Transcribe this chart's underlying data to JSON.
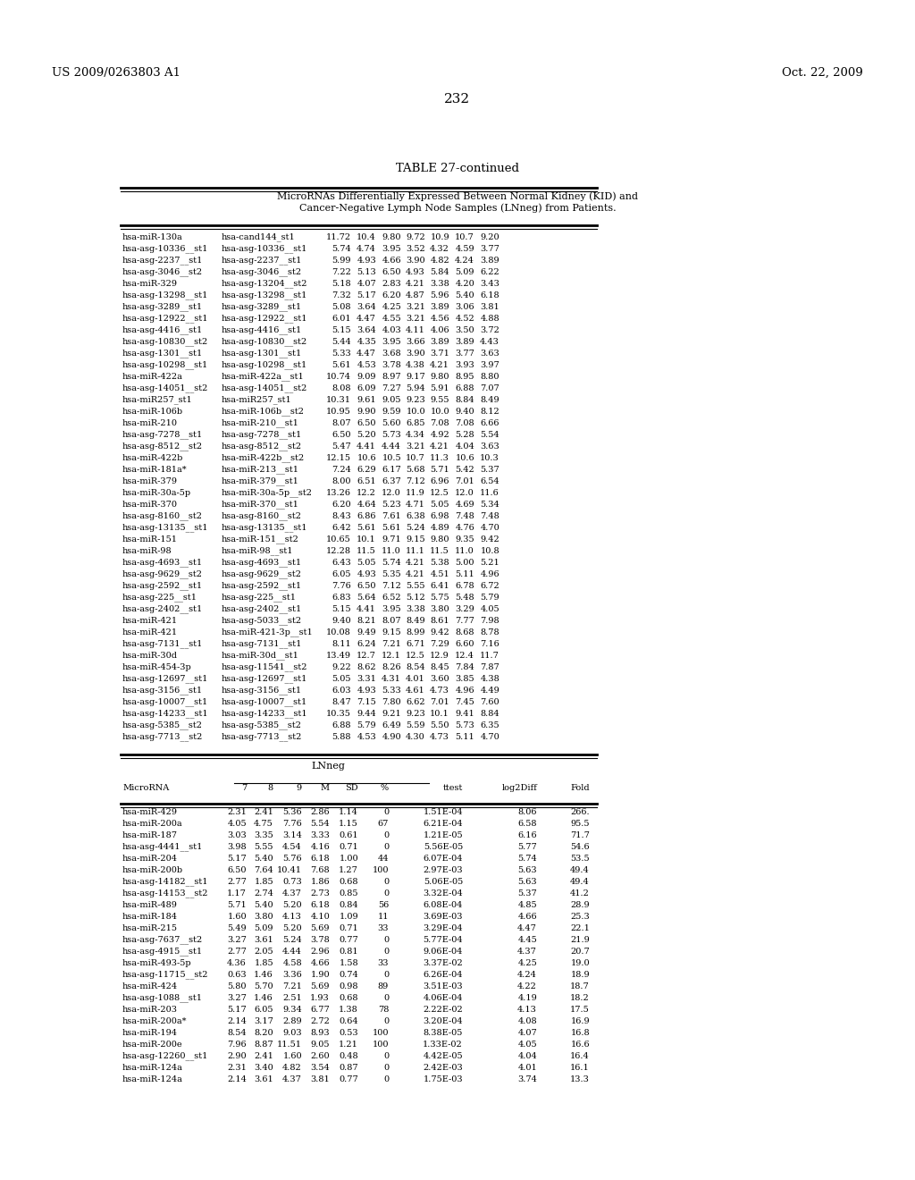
{
  "patent_left": "US 2009/0263803 A1",
  "patent_right": "Oct. 22, 2009",
  "page_number": "232",
  "table_title": "TABLE 27-continued",
  "subtitle1": "MicroRNAs Differentially Expressed Between Normal Kidney (KID) and",
  "subtitle2": "Cancer-Negative Lymph Node Samples (LNneg) from Patients.",
  "top_table_rows": [
    [
      "hsa-miR-130a",
      "hsa-cand144_st1",
      "11.72",
      "10.4",
      "9.80",
      "9.72",
      "10.9",
      "10.7",
      "9.20"
    ],
    [
      "hsa-asg-10336__st1",
      "hsa-asg-10336__st1",
      "5.74",
      "4.74",
      "3.95",
      "3.52",
      "4.32",
      "4.59",
      "3.77"
    ],
    [
      "hsa-asg-2237__st1",
      "hsa-asg-2237__st1",
      "5.99",
      "4.93",
      "4.66",
      "3.90",
      "4.82",
      "4.24",
      "3.89"
    ],
    [
      "hsa-asg-3046__st2",
      "hsa-asg-3046__st2",
      "7.22",
      "5.13",
      "6.50",
      "4.93",
      "5.84",
      "5.09",
      "6.22"
    ],
    [
      "hsa-miR-329",
      "hsa-asg-13204__st2",
      "5.18",
      "4.07",
      "2.83",
      "4.21",
      "3.38",
      "4.20",
      "3.43"
    ],
    [
      "hsa-asg-13298__st1",
      "hsa-asg-13298__st1",
      "7.32",
      "5.17",
      "6.20",
      "4.87",
      "5.96",
      "5.40",
      "6.18"
    ],
    [
      "hsa-asg-3289__st1",
      "hsa-asg-3289__st1",
      "5.08",
      "3.64",
      "4.25",
      "3.21",
      "3.89",
      "3.06",
      "3.81"
    ],
    [
      "hsa-asg-12922__st1",
      "hsa-asg-12922__st1",
      "6.01",
      "4.47",
      "4.55",
      "3.21",
      "4.56",
      "4.52",
      "4.88"
    ],
    [
      "hsa-asg-4416__st1",
      "hsa-asg-4416__st1",
      "5.15",
      "3.64",
      "4.03",
      "4.11",
      "4.06",
      "3.50",
      "3.72"
    ],
    [
      "hsa-asg-10830__st2",
      "hsa-asg-10830__st2",
      "5.44",
      "4.35",
      "3.95",
      "3.66",
      "3.89",
      "3.89",
      "4.43"
    ],
    [
      "hsa-asg-1301__st1",
      "hsa-asg-1301__st1",
      "5.33",
      "4.47",
      "3.68",
      "3.90",
      "3.71",
      "3.77",
      "3.63"
    ],
    [
      "hsa-asg-10298__st1",
      "hsa-asg-10298__st1",
      "5.61",
      "4.53",
      "3.78",
      "4.38",
      "4.21",
      "3.93",
      "3.97"
    ],
    [
      "hsa-miR-422a",
      "hsa-miR-422a__st1",
      "10.74",
      "9.09",
      "8.97",
      "9.17",
      "9.80",
      "8.95",
      "8.80"
    ],
    [
      "hsa-asg-14051__st2",
      "hsa-asg-14051__st2",
      "8.08",
      "6.09",
      "7.27",
      "5.94",
      "5.91",
      "6.88",
      "7.07"
    ],
    [
      "hsa-miR257_st1",
      "hsa-miR257_st1",
      "10.31",
      "9.61",
      "9.05",
      "9.23",
      "9.55",
      "8.84",
      "8.49"
    ],
    [
      "hsa-miR-106b",
      "hsa-miR-106b__st2",
      "10.95",
      "9.90",
      "9.59",
      "10.0",
      "10.0",
      "9.40",
      "8.12"
    ],
    [
      "hsa-miR-210",
      "hsa-miR-210__st1",
      "8.07",
      "6.50",
      "5.60",
      "6.85",
      "7.08",
      "7.08",
      "6.66"
    ],
    [
      "hsa-asg-7278__st1",
      "hsa-asg-7278__st1",
      "6.50",
      "5.20",
      "5.73",
      "4.34",
      "4.92",
      "5.28",
      "5.54"
    ],
    [
      "hsa-asg-8512__st2",
      "hsa-asg-8512__st2",
      "5.47",
      "4.41",
      "4.44",
      "3.21",
      "4.21",
      "4.04",
      "3.63"
    ],
    [
      "hsa-miR-422b",
      "hsa-miR-422b__st2",
      "12.15",
      "10.6",
      "10.5",
      "10.7",
      "11.3",
      "10.6",
      "10.3"
    ],
    [
      "hsa-miR-181a*",
      "hsa-miR-213__st1",
      "7.24",
      "6.29",
      "6.17",
      "5.68",
      "5.71",
      "5.42",
      "5.37"
    ],
    [
      "hsa-miR-379",
      "hsa-miR-379__st1",
      "8.00",
      "6.51",
      "6.37",
      "7.12",
      "6.96",
      "7.01",
      "6.54"
    ],
    [
      "hsa-miR-30a-5p",
      "hsa-miR-30a-5p__st2",
      "13.26",
      "12.2",
      "12.0",
      "11.9",
      "12.5",
      "12.0",
      "11.6"
    ],
    [
      "hsa-miR-370",
      "hsa-miR-370__st1",
      "6.20",
      "4.64",
      "5.23",
      "4.71",
      "5.05",
      "4.69",
      "5.34"
    ],
    [
      "hsa-asg-8160__st2",
      "hsa-asg-8160__st2",
      "8.43",
      "6.86",
      "7.61",
      "6.38",
      "6.98",
      "7.48",
      "7.48"
    ],
    [
      "hsa-asg-13135__st1",
      "hsa-asg-13135__st1",
      "6.42",
      "5.61",
      "5.61",
      "5.24",
      "4.89",
      "4.76",
      "4.70"
    ],
    [
      "hsa-miR-151",
      "hsa-miR-151__st2",
      "10.65",
      "10.1",
      "9.71",
      "9.15",
      "9.80",
      "9.35",
      "9.42"
    ],
    [
      "hsa-miR-98",
      "hsa-miR-98__st1",
      "12.28",
      "11.5",
      "11.0",
      "11.1",
      "11.5",
      "11.0",
      "10.8"
    ],
    [
      "hsa-asg-4693__st1",
      "hsa-asg-4693__st1",
      "6.43",
      "5.05",
      "5.74",
      "4.21",
      "5.38",
      "5.00",
      "5.21"
    ],
    [
      "hsa-asg-9629__st2",
      "hsa-asg-9629__st2",
      "6.05",
      "4.93",
      "5.35",
      "4.21",
      "4.51",
      "5.11",
      "4.96"
    ],
    [
      "hsa-asg-2592__st1",
      "hsa-asg-2592__st1",
      "7.76",
      "6.50",
      "7.12",
      "5.55",
      "6.41",
      "6.78",
      "6.72"
    ],
    [
      "hsa-asg-225__st1",
      "hsa-asg-225__st1",
      "6.83",
      "5.64",
      "6.52",
      "5.12",
      "5.75",
      "5.48",
      "5.79"
    ],
    [
      "hsa-asg-2402__st1",
      "hsa-asg-2402__st1",
      "5.15",
      "4.41",
      "3.95",
      "3.38",
      "3.80",
      "3.29",
      "4.05"
    ],
    [
      "hsa-miR-421",
      "hsa-asg-5033__st2",
      "9.40",
      "8.21",
      "8.07",
      "8.49",
      "8.61",
      "7.77",
      "7.98"
    ],
    [
      "hsa-miR-421",
      "hsa-miR-421-3p__st1",
      "10.08",
      "9.49",
      "9.15",
      "8.99",
      "9.42",
      "8.68",
      "8.78"
    ],
    [
      "hsa-asg-7131__st1",
      "hsa-asg-7131__st1",
      "8.11",
      "6.24",
      "7.21",
      "6.71",
      "7.29",
      "6.60",
      "7.16"
    ],
    [
      "hsa-miR-30d",
      "hsa-miR-30d__st1",
      "13.49",
      "12.7",
      "12.1",
      "12.5",
      "12.9",
      "12.4",
      "11.7"
    ],
    [
      "hsa-miR-454-3p",
      "hsa-asg-11541__st2",
      "9.22",
      "8.62",
      "8.26",
      "8.54",
      "8.45",
      "7.84",
      "7.87"
    ],
    [
      "hsa-asg-12697__st1",
      "hsa-asg-12697__st1",
      "5.05",
      "3.31",
      "4.31",
      "4.01",
      "3.60",
      "3.85",
      "4.38"
    ],
    [
      "hsa-asg-3156__st1",
      "hsa-asg-3156__st1",
      "6.03",
      "4.93",
      "5.33",
      "4.61",
      "4.73",
      "4.96",
      "4.49"
    ],
    [
      "hsa-asg-10007__st1",
      "hsa-asg-10007__st1",
      "8.47",
      "7.15",
      "7.80",
      "6.62",
      "7.01",
      "7.45",
      "7.60"
    ],
    [
      "hsa-asg-14233__st1",
      "hsa-asg-14233__st1",
      "10.35",
      "9.44",
      "9.21",
      "9.23",
      "10.1",
      "9.41",
      "8.84"
    ],
    [
      "hsa-asg-5385__st2",
      "hsa-asg-5385__st2",
      "6.88",
      "5.79",
      "6.49",
      "5.59",
      "5.50",
      "5.73",
      "6.35"
    ],
    [
      "hsa-asg-7713__st2",
      "hsa-asg-7713__st2",
      "5.88",
      "4.53",
      "4.90",
      "4.30",
      "4.73",
      "5.11",
      "4.70"
    ]
  ],
  "lnneg_header": [
    "MicroRNA",
    "7",
    "8",
    "9",
    "M",
    "SD",
    "%",
    "ttest",
    "log2Diff",
    "Fold"
  ],
  "lnneg_rows": [
    [
      "hsa-miR-429",
      "2.31",
      "2.41",
      "5.36",
      "2.86",
      "1.14",
      "0",
      "1.51E-04",
      "8.06",
      "266."
    ],
    [
      "hsa-miR-200a",
      "4.05",
      "4.75",
      "7.76",
      "5.54",
      "1.15",
      "67",
      "6.21E-04",
      "6.58",
      "95.5"
    ],
    [
      "hsa-miR-187",
      "3.03",
      "3.35",
      "3.14",
      "3.33",
      "0.61",
      "0",
      "1.21E-05",
      "6.16",
      "71.7"
    ],
    [
      "hsa-asg-4441__st1",
      "3.98",
      "5.55",
      "4.54",
      "4.16",
      "0.71",
      "0",
      "5.56E-05",
      "5.77",
      "54.6"
    ],
    [
      "hsa-miR-204",
      "5.17",
      "5.40",
      "5.76",
      "6.18",
      "1.00",
      "44",
      "6.07E-04",
      "5.74",
      "53.5"
    ],
    [
      "hsa-miR-200b",
      "6.50",
      "7.64",
      "10.41",
      "7.68",
      "1.27",
      "100",
      "2.97E-03",
      "5.63",
      "49.4"
    ],
    [
      "hsa-asg-14182__st1",
      "2.77",
      "1.85",
      "0.73",
      "1.86",
      "0.68",
      "0",
      "5.06E-05",
      "5.63",
      "49.4"
    ],
    [
      "hsa-asg-14153__st2",
      "1.17",
      "2.74",
      "4.37",
      "2.73",
      "0.85",
      "0",
      "3.32E-04",
      "5.37",
      "41.2"
    ],
    [
      "hsa-miR-489",
      "5.71",
      "5.40",
      "5.20",
      "6.18",
      "0.84",
      "56",
      "6.08E-04",
      "4.85",
      "28.9"
    ],
    [
      "hsa-miR-184",
      "1.60",
      "3.80",
      "4.13",
      "4.10",
      "1.09",
      "11",
      "3.69E-03",
      "4.66",
      "25.3"
    ],
    [
      "hsa-miR-215",
      "5.49",
      "5.09",
      "5.20",
      "5.69",
      "0.71",
      "33",
      "3.29E-04",
      "4.47",
      "22.1"
    ],
    [
      "hsa-asg-7637__st2",
      "3.27",
      "3.61",
      "5.24",
      "3.78",
      "0.77",
      "0",
      "5.77E-04",
      "4.45",
      "21.9"
    ],
    [
      "hsa-asg-4915__st1",
      "2.77",
      "2.05",
      "4.44",
      "2.96",
      "0.81",
      "0",
      "9.06E-04",
      "4.37",
      "20.7"
    ],
    [
      "hsa-miR-493-5p",
      "4.36",
      "1.85",
      "4.58",
      "4.66",
      "1.58",
      "33",
      "3.37E-02",
      "4.25",
      "19.0"
    ],
    [
      "hsa-asg-11715__st2",
      "0.63",
      "1.46",
      "3.36",
      "1.90",
      "0.74",
      "0",
      "6.26E-04",
      "4.24",
      "18.9"
    ],
    [
      "hsa-miR-424",
      "5.80",
      "5.70",
      "7.21",
      "5.69",
      "0.98",
      "89",
      "3.51E-03",
      "4.22",
      "18.7"
    ],
    [
      "hsa-asg-1088__st1",
      "3.27",
      "1.46",
      "2.51",
      "1.93",
      "0.68",
      "0",
      "4.06E-04",
      "4.19",
      "18.2"
    ],
    [
      "hsa-miR-203",
      "5.17",
      "6.05",
      "9.34",
      "6.77",
      "1.38",
      "78",
      "2.22E-02",
      "4.13",
      "17.5"
    ],
    [
      "hsa-miR-200a*",
      "2.14",
      "3.17",
      "2.89",
      "2.72",
      "0.64",
      "0",
      "3.20E-04",
      "4.08",
      "16.9"
    ],
    [
      "hsa-miR-194",
      "8.54",
      "8.20",
      "9.03",
      "8.93",
      "0.53",
      "100",
      "8.38E-05",
      "4.07",
      "16.8"
    ],
    [
      "hsa-miR-200e",
      "7.96",
      "8.87",
      "11.51",
      "9.05",
      "1.21",
      "100",
      "1.33E-02",
      "4.05",
      "16.6"
    ],
    [
      "hsa-asg-12260__st1",
      "2.90",
      "2.41",
      "1.60",
      "2.60",
      "0.48",
      "0",
      "4.42E-05",
      "4.04",
      "16.4"
    ],
    [
      "hsa-miR-124a",
      "2.31",
      "3.40",
      "4.82",
      "3.54",
      "0.87",
      "0",
      "2.42E-03",
      "4.01",
      "16.1"
    ],
    [
      "hsa-miR-124a",
      "2.14",
      "3.61",
      "4.37",
      "3.81",
      "0.77",
      "0",
      "1.75E-03",
      "3.74",
      "13.3"
    ]
  ]
}
